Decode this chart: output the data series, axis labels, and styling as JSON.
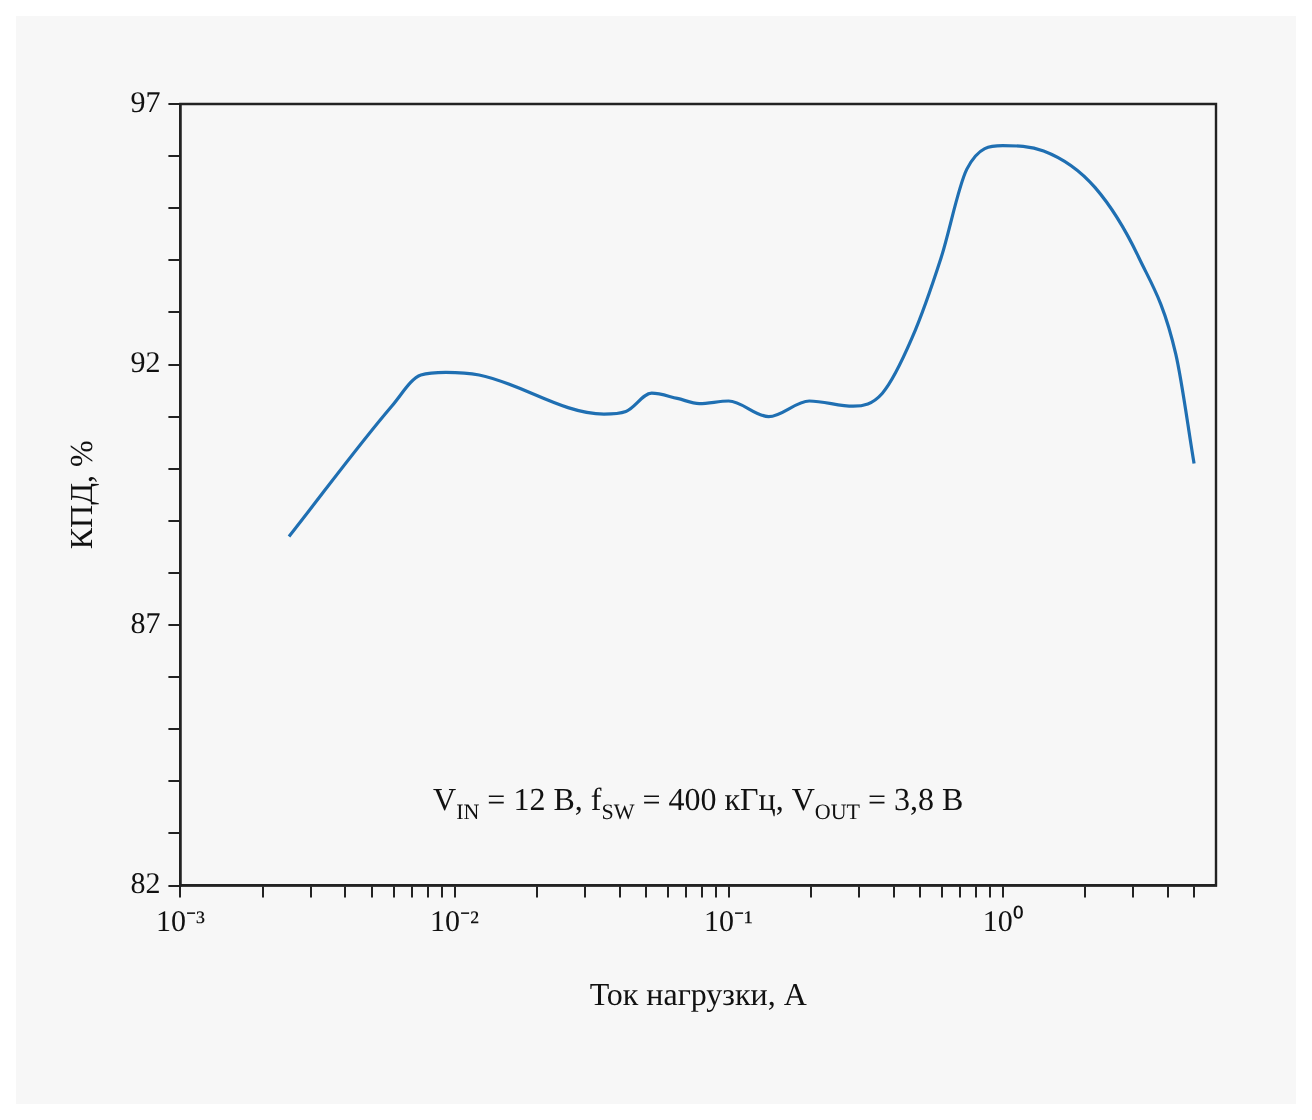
{
  "chart_data": {
    "type": "line",
    "xlabel": "Ток нагрузки, А",
    "ylabel": "КПД, %",
    "annotations": [
      "V$_{IN}$ = 12 В, f$_{SW}$ = 400 кГц, V$_{OUT}$ = 3,8 В"
    ],
    "x": [
      0.00249,
      0.0059,
      0.00754,
      0.0093,
      0.0123,
      0.0351,
      0.0422,
      0.0524,
      0.065,
      0.0782,
      0.1,
      0.14,
      0.197,
      0.285,
      0.364,
      0.466,
      0.596,
      0.74,
      1.0,
      1.41,
      2.17,
      3.14,
      4.28,
      4.99
    ],
    "series": [
      {
        "color": "#1f6fb2",
        "values": [
          88.7,
          91.2,
          91.8,
          91.85,
          91.8,
          91.05,
          91.1,
          91.45,
          91.35,
          91.25,
          91.3,
          91.0,
          91.3,
          91.2,
          91.45,
          92.5,
          94.05,
          95.75,
          96.2,
          96.1,
          95.4,
          94.05,
          92.2,
          90.1
        ]
      }
    ],
    "log": "x",
    "xlim": [
      0.001,
      6
    ],
    "ylim": [
      82,
      97
    ],
    "xticks": [
      {
        "value": 0.001,
        "label": "10⁻³"
      },
      {
        "value": 0.002,
        "label": null
      },
      {
        "value": 0.003,
        "label": null
      },
      {
        "value": 0.004,
        "label": null
      },
      {
        "value": 0.005,
        "label": null
      },
      {
        "value": 0.006,
        "label": null
      },
      {
        "value": 0.007,
        "label": null
      },
      {
        "value": 0.008,
        "label": null
      },
      {
        "value": 0.009,
        "label": null
      },
      {
        "value": 0.01,
        "label": "10⁻²"
      },
      {
        "value": 0.02,
        "label": null
      },
      {
        "value": 0.03,
        "label": null
      },
      {
        "value": 0.04,
        "label": null
      },
      {
        "value": 0.05,
        "label": null
      },
      {
        "value": 0.06,
        "label": null
      },
      {
        "value": 0.07,
        "label": null
      },
      {
        "value": 0.08,
        "label": null
      },
      {
        "value": 0.09,
        "label": null
      },
      {
        "value": 0.1,
        "label": "10⁻¹"
      },
      {
        "value": 0.2,
        "label": null
      },
      {
        "value": 0.3,
        "label": null
      },
      {
        "value": 0.4,
        "label": null
      },
      {
        "value": 0.5,
        "label": null
      },
      {
        "value": 0.6,
        "label": null
      },
      {
        "value": 0.7,
        "label": null
      },
      {
        "value": 0.8,
        "label": null
      },
      {
        "value": 0.9,
        "label": null
      },
      {
        "value": 1,
        "label": "10⁰"
      },
      {
        "value": 2,
        "label": null
      },
      {
        "value": 3,
        "label": null
      },
      {
        "value": 4,
        "label": null
      },
      {
        "value": 5,
        "label": null
      }
    ],
    "yticks": [
      82,
      {
        "value": 83,
        "label": null
      },
      {
        "value": 84,
        "label": null
      },
      {
        "value": 85,
        "label": null
      },
      {
        "value": 86,
        "label": null
      },
      87,
      {
        "value": 88,
        "label": null
      },
      {
        "value": 89,
        "label": null
      },
      {
        "value": 90,
        "label": null
      },
      {
        "value": 91,
        "label": null
      },
      92,
      {
        "value": 93,
        "label": null
      },
      {
        "value": 94,
        "label": null
      },
      {
        "value": 95,
        "label": null
      },
      {
        "value": 96,
        "label": null
      },
      97
    ],
    "grid": false,
    "legend": false,
    "marker": "none",
    "line_style": "solid"
  }
}
